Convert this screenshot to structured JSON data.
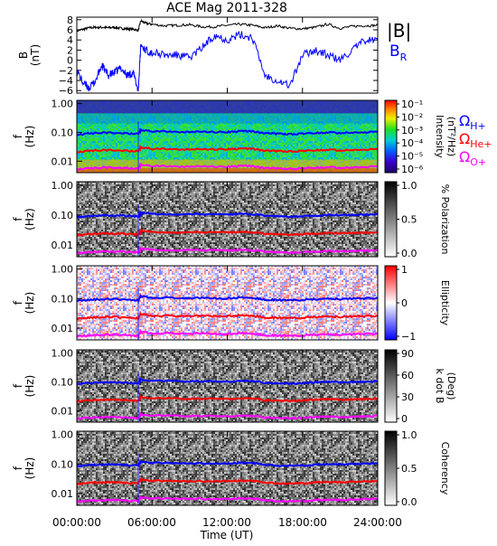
{
  "title": "ACE Mag 2011-328",
  "x_axis": {
    "label": "Time (UT)",
    "ticks": [
      "00:00:00",
      "06:00:00",
      "12:00:00",
      "18:00:00",
      "24:00:00"
    ],
    "tick_hours": [
      0,
      6,
      12,
      18,
      24
    ]
  },
  "colors": {
    "B_mag": "#000000",
    "B_R": "#0000ff",
    "H_gyro": "#0000ff",
    "He_gyro": "#ff0000",
    "O_gyro": "#ff00ff"
  },
  "legends": {
    "top": [
      {
        "text": "|B|",
        "color": "#000000"
      },
      {
        "text": "B",
        "sub": "R",
        "color": "#0000ff"
      }
    ],
    "gyro": [
      {
        "text": "Ω",
        "sub": "H+",
        "color": "#0000ff"
      },
      {
        "text": "Ω",
        "sub": "He+",
        "color": "#ff0000"
      },
      {
        "text": "Ω",
        "sub": "O+",
        "color": "#ff00ff"
      }
    ]
  },
  "panels": [
    {
      "id": "b-field",
      "ylabel_top": "B",
      "ylabel_bottom": "(nT)",
      "ytick_labels": [
        "8",
        "6",
        "4",
        "2",
        "0",
        "−2",
        "−4",
        "−6"
      ],
      "ytick_values": [
        8,
        6,
        4,
        2,
        0,
        -2,
        -4,
        -6
      ]
    },
    {
      "id": "intensity",
      "ylabel_top": "f",
      "ylabel_bottom": "(Hz)",
      "ytick_labels": [
        "1.00",
        "0.10",
        "0.01"
      ],
      "colorbar": {
        "label": "Intensity",
        "label2": "(nT²/Hz)",
        "scheme": "rainbow",
        "tick_labels": [
          "10⁻¹",
          "10⁻²",
          "10⁻³",
          "10⁻⁴",
          "10⁻⁵",
          "10⁻⁶"
        ]
      }
    },
    {
      "id": "polarization",
      "ylabel_top": "f",
      "ylabel_bottom": "(Hz)",
      "ytick_labels": [
        "1.00",
        "0.10",
        "0.01"
      ],
      "colorbar": {
        "label": "% Polarization",
        "label2": "",
        "scheme": "gray",
        "tick_labels": [
          "1.0",
          "0.5",
          "0.0"
        ]
      }
    },
    {
      "id": "ellipticity",
      "ylabel_top": "f",
      "ylabel_bottom": "(Hz)",
      "ytick_labels": [
        "1.00",
        "0.10",
        "0.01"
      ],
      "colorbar": {
        "label": "Ellipticity",
        "label2": "",
        "scheme": "bwr",
        "tick_labels": [
          "1",
          "0",
          "−1"
        ]
      }
    },
    {
      "id": "kdotb",
      "ylabel_top": "f",
      "ylabel_bottom": "(Hz)",
      "ytick_labels": [
        "1.00",
        "0.10",
        "0.01"
      ],
      "colorbar": {
        "label": "k dot B",
        "label2": "(Deg)",
        "scheme": "gray",
        "tick_labels": [
          "90",
          "60",
          "30",
          "0"
        ]
      }
    },
    {
      "id": "coherency",
      "ylabel_top": "f",
      "ylabel_bottom": "(Hz)",
      "ytick_labels": [
        "1.00",
        "0.10",
        "0.01"
      ],
      "colorbar": {
        "label": "Coherency",
        "label2": "",
        "scheme": "gray",
        "tick_labels": [
          "1.0",
          "0.5",
          "0.0"
        ]
      }
    }
  ],
  "chart_data": {
    "type": "line",
    "title": "ACE Mag 2011-328",
    "xlabel": "Time (UT)",
    "xlim": [
      0,
      24
    ],
    "series": [
      {
        "name": "|B|",
        "panel": "b-field",
        "units": "nT",
        "x": [
          0,
          0.5,
          1,
          1.5,
          2,
          2.5,
          3,
          3.5,
          4,
          4.5,
          4.9,
          5.1,
          5.5,
          6,
          7,
          8,
          9,
          10,
          11,
          12,
          13,
          14,
          15,
          16,
          17,
          18,
          19,
          20,
          21,
          22,
          23,
          24
        ],
        "y": [
          5.8,
          6.1,
          6.4,
          6.5,
          6.5,
          6.4,
          6.5,
          6.3,
          6.2,
          6.1,
          5.9,
          7.8,
          7.3,
          7.1,
          6.8,
          6.9,
          7.0,
          6.6,
          6.6,
          6.9,
          7.1,
          6.9,
          6.4,
          6.8,
          6.3,
          6.2,
          6.5,
          7.1,
          6.3,
          6.7,
          6.8,
          6.9
        ]
      },
      {
        "name": "B_R",
        "panel": "b-field",
        "units": "nT",
        "x": [
          0,
          0.5,
          1,
          1.5,
          2,
          2.5,
          3,
          3.5,
          4,
          4.5,
          4.9,
          5.1,
          5.5,
          6,
          7,
          8,
          9,
          10,
          11,
          12,
          13,
          14,
          15,
          16,
          17,
          18,
          19,
          20,
          21,
          22,
          23,
          24
        ],
        "y": [
          -2,
          -4.5,
          -5.5,
          -4,
          -1,
          -3,
          -2.5,
          -1.5,
          -3,
          -2.5,
          -6,
          3,
          2,
          1.5,
          1,
          1,
          0.5,
          2.5,
          5,
          4,
          5,
          4.5,
          -3,
          -4,
          -5,
          1,
          2,
          1,
          0,
          2,
          4,
          4
        ]
      },
      {
        "name": "Ω_H+",
        "panel": "spectral",
        "units": "Hz",
        "x": [
          0,
          1,
          2,
          3,
          4,
          4.9,
          5.1,
          6,
          8,
          10,
          12,
          13,
          14,
          15,
          16,
          17,
          18,
          19,
          20,
          21,
          22,
          23,
          24
        ],
        "y": [
          0.085,
          0.092,
          0.097,
          0.096,
          0.093,
          0.088,
          0.12,
          0.11,
          0.105,
          0.105,
          0.102,
          0.11,
          0.108,
          0.093,
          0.09,
          0.088,
          0.09,
          0.095,
          0.1,
          0.097,
          0.1,
          0.102,
          0.105
        ]
      },
      {
        "name": "Ω_He+",
        "panel": "spectral",
        "units": "Hz",
        "x": [
          0,
          1,
          2,
          3,
          4,
          4.9,
          5.1,
          6,
          8,
          10,
          12,
          13,
          14,
          15,
          16,
          17,
          18,
          19,
          20,
          21,
          22,
          23,
          24
        ],
        "y": [
          0.021,
          0.023,
          0.024,
          0.024,
          0.023,
          0.022,
          0.03,
          0.027,
          0.026,
          0.026,
          0.026,
          0.027,
          0.027,
          0.023,
          0.0225,
          0.022,
          0.0225,
          0.024,
          0.025,
          0.024,
          0.025,
          0.0255,
          0.026
        ]
      },
      {
        "name": "Ω_O+",
        "panel": "spectral",
        "units": "Hz",
        "x": [
          0,
          1,
          2,
          3,
          4,
          4.9,
          5.1,
          6,
          8,
          10,
          12,
          13,
          14,
          15,
          16,
          17,
          18,
          19,
          20,
          21,
          22,
          23,
          24
        ],
        "y": [
          0.0053,
          0.0057,
          0.006,
          0.006,
          0.0058,
          0.0055,
          0.0075,
          0.0068,
          0.0066,
          0.0066,
          0.0064,
          0.0068,
          0.0067,
          0.0058,
          0.0056,
          0.0055,
          0.0056,
          0.006,
          0.0062,
          0.006,
          0.0062,
          0.0064,
          0.0066
        ]
      }
    ],
    "y_ranges": {
      "b-field": [
        -6.5,
        8.5
      ],
      "spectral_hz": [
        0.004,
        1.3
      ],
      "spectral_scale": "log"
    }
  }
}
